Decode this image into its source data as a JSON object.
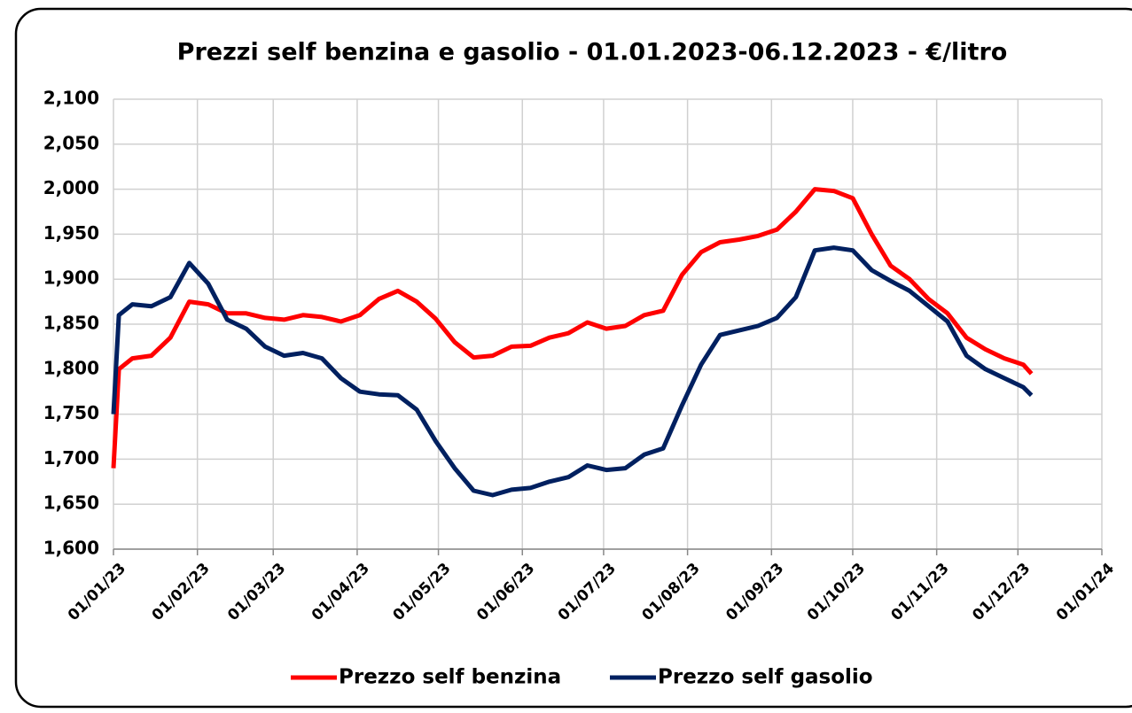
{
  "chart_data": {
    "type": "line",
    "title": "Prezzi self benzina e gasolio - 01.01.2023-06.12.2023 - €/litro",
    "x": [
      "2023-01-01",
      "2023-01-03",
      "2023-01-08",
      "2023-01-15",
      "2023-01-22",
      "2023-01-29",
      "2023-02-05",
      "2023-02-12",
      "2023-02-19",
      "2023-02-26",
      "2023-03-05",
      "2023-03-12",
      "2023-03-19",
      "2023-03-26",
      "2023-04-02",
      "2023-04-09",
      "2023-04-16",
      "2023-04-23",
      "2023-04-30",
      "2023-05-07",
      "2023-05-14",
      "2023-05-21",
      "2023-05-28",
      "2023-06-04",
      "2023-06-11",
      "2023-06-18",
      "2023-06-25",
      "2023-07-02",
      "2023-07-09",
      "2023-07-16",
      "2023-07-23",
      "2023-07-30",
      "2023-08-06",
      "2023-08-13",
      "2023-08-20",
      "2023-08-27",
      "2023-09-03",
      "2023-09-10",
      "2023-09-17",
      "2023-09-24",
      "2023-10-01",
      "2023-10-08",
      "2023-10-15",
      "2023-10-22",
      "2023-10-29",
      "2023-11-05",
      "2023-11-12",
      "2023-11-19",
      "2023-11-26",
      "2023-12-03",
      "2023-12-06"
    ],
    "series": [
      {
        "name": "Prezzo self benzina",
        "color": "#ff0000",
        "values": [
          1.69,
          1.8,
          1.812,
          1.815,
          1.835,
          1.875,
          1.872,
          1.862,
          1.862,
          1.857,
          1.855,
          1.86,
          1.858,
          1.853,
          1.86,
          1.878,
          1.887,
          1.875,
          1.856,
          1.83,
          1.813,
          1.815,
          1.825,
          1.826,
          1.835,
          1.84,
          1.852,
          1.845,
          1.848,
          1.86,
          1.865,
          1.905,
          1.93,
          1.941,
          1.944,
          1.948,
          1.955,
          1.975,
          2.0,
          1.998,
          1.99,
          1.95,
          1.915,
          1.9,
          1.878,
          1.862,
          1.835,
          1.822,
          1.812,
          1.805,
          1.795
        ]
      },
      {
        "name": "Prezzo self gasolio",
        "color": "#002060",
        "values": [
          1.75,
          1.86,
          1.872,
          1.87,
          1.88,
          1.918,
          1.895,
          1.855,
          1.845,
          1.825,
          1.815,
          1.818,
          1.812,
          1.79,
          1.775,
          1.772,
          1.771,
          1.755,
          1.72,
          1.69,
          1.665,
          1.66,
          1.666,
          1.668,
          1.675,
          1.68,
          1.693,
          1.688,
          1.69,
          1.705,
          1.712,
          1.76,
          1.805,
          1.838,
          1.843,
          1.848,
          1.857,
          1.88,
          1.932,
          1.935,
          1.932,
          1.91,
          1.898,
          1.887,
          1.87,
          1.853,
          1.815,
          1.8,
          1.79,
          1.78,
          1.771
        ]
      }
    ],
    "xlim": [
      "2023-01-01",
      "2024-01-01"
    ],
    "xticks": [
      {
        "value": "2023-01-01",
        "label": "01/01/23"
      },
      {
        "value": "2023-02-01",
        "label": "01/02/23"
      },
      {
        "value": "2023-03-01",
        "label": "01/03/23"
      },
      {
        "value": "2023-04-01",
        "label": "01/04/23"
      },
      {
        "value": "2023-05-01",
        "label": "01/05/23"
      },
      {
        "value": "2023-06-01",
        "label": "01/06/23"
      },
      {
        "value": "2023-07-01",
        "label": "01/07/23"
      },
      {
        "value": "2023-08-01",
        "label": "01/08/23"
      },
      {
        "value": "2023-09-01",
        "label": "01/09/23"
      },
      {
        "value": "2023-10-01",
        "label": "01/10/23"
      },
      {
        "value": "2023-11-01",
        "label": "01/11/23"
      },
      {
        "value": "2023-12-01",
        "label": "01/12/23"
      },
      {
        "value": "2024-01-01",
        "label": "01/01/24"
      }
    ],
    "ylim": [
      1.6,
      2.1
    ],
    "yticks": [
      {
        "value": 1.6,
        "label": "1,600"
      },
      {
        "value": 1.65,
        "label": "1,650"
      },
      {
        "value": 1.7,
        "label": "1,700"
      },
      {
        "value": 1.75,
        "label": "1,750"
      },
      {
        "value": 1.8,
        "label": "1,800"
      },
      {
        "value": 1.85,
        "label": "1,850"
      },
      {
        "value": 1.9,
        "label": "1,900"
      },
      {
        "value": 1.95,
        "label": "1,950"
      },
      {
        "value": 2.0,
        "label": "2,000"
      },
      {
        "value": 2.05,
        "label": "2,050"
      },
      {
        "value": 2.1,
        "label": "2,100"
      }
    ],
    "grid": true,
    "legend": "bottom"
  }
}
